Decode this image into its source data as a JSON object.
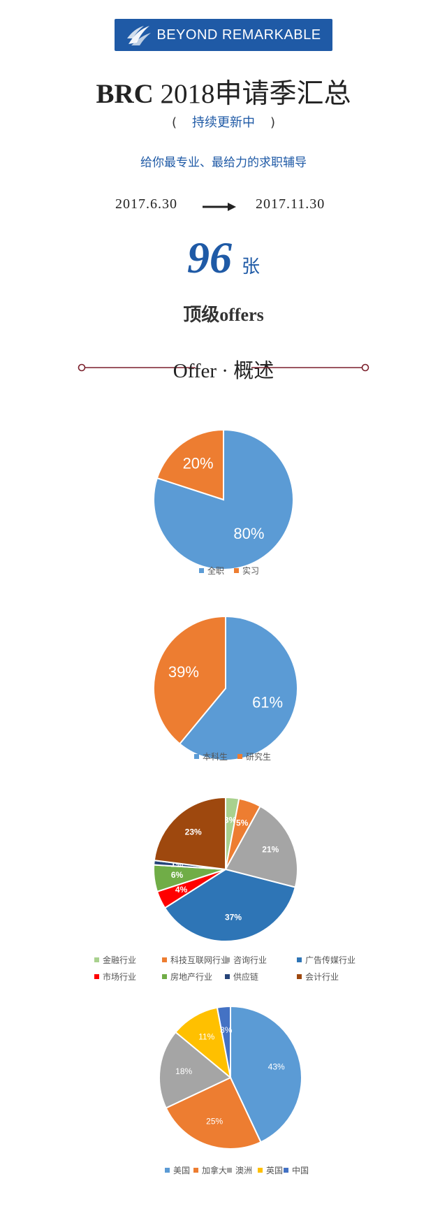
{
  "header": {
    "logo_text": "BEYOND REMARKABLE",
    "title_brc": "BRC",
    "title_rest": "2018申请季汇总",
    "subtitle_open": "(",
    "subtitle": "持续更新中",
    "subtitle_close": ")",
    "slogan": "给你最专业、最给力的求职辅导",
    "date_start": "2017.6.30",
    "date_end": "2017.11.30",
    "count": "96",
    "count_unit": "张",
    "offers_label": "顶级offers",
    "section_title": "Offer · 概述"
  },
  "colors": {
    "brand_blue": "#1f5aa6",
    "section_line": "#7a1f2b"
  },
  "chart_data": [
    {
      "type": "pie",
      "labels": [
        "全职",
        "实习"
      ],
      "values": [
        80,
        20
      ],
      "value_labels": [
        "80%",
        "20%"
      ],
      "colors": [
        "#5b9bd5",
        "#ed7d31"
      ],
      "legend": "bottom"
    },
    {
      "type": "pie",
      "labels": [
        "本科生",
        "研究生"
      ],
      "values": [
        61,
        39
      ],
      "value_labels": [
        "61%",
        "39%"
      ],
      "colors": [
        "#5b9bd5",
        "#ed7d31"
      ],
      "legend": "bottom"
    },
    {
      "type": "pie",
      "labels": [
        "金融行业",
        "科技互联网行业",
        "咨询行业",
        "广告传媒行业",
        "市场行业",
        "房地产行业",
        "供应链",
        "会计行业"
      ],
      "values": [
        3,
        5,
        21,
        37,
        4,
        6,
        1,
        23
      ],
      "value_labels": [
        "3%",
        "5%",
        "21%",
        "37%",
        "4%",
        "6%",
        "1%",
        "23%"
      ],
      "colors": [
        "#a9d18e",
        "#ed7d31",
        "#a5a5a5",
        "#2e75b6",
        "#ff0000",
        "#70ad47",
        "#264478",
        "#9e480e"
      ],
      "legend": "bottom"
    },
    {
      "type": "pie",
      "labels": [
        "美国",
        "加拿大",
        "澳洲",
        "英国",
        "中国"
      ],
      "values": [
        43,
        25,
        18,
        11,
        3
      ],
      "value_labels": [
        "43%",
        "25%",
        "18%",
        "11%",
        "3%"
      ],
      "colors": [
        "#5b9bd5",
        "#ed7d31",
        "#a5a5a5",
        "#ffc000",
        "#4472c4"
      ],
      "legend": "bottom"
    }
  ]
}
